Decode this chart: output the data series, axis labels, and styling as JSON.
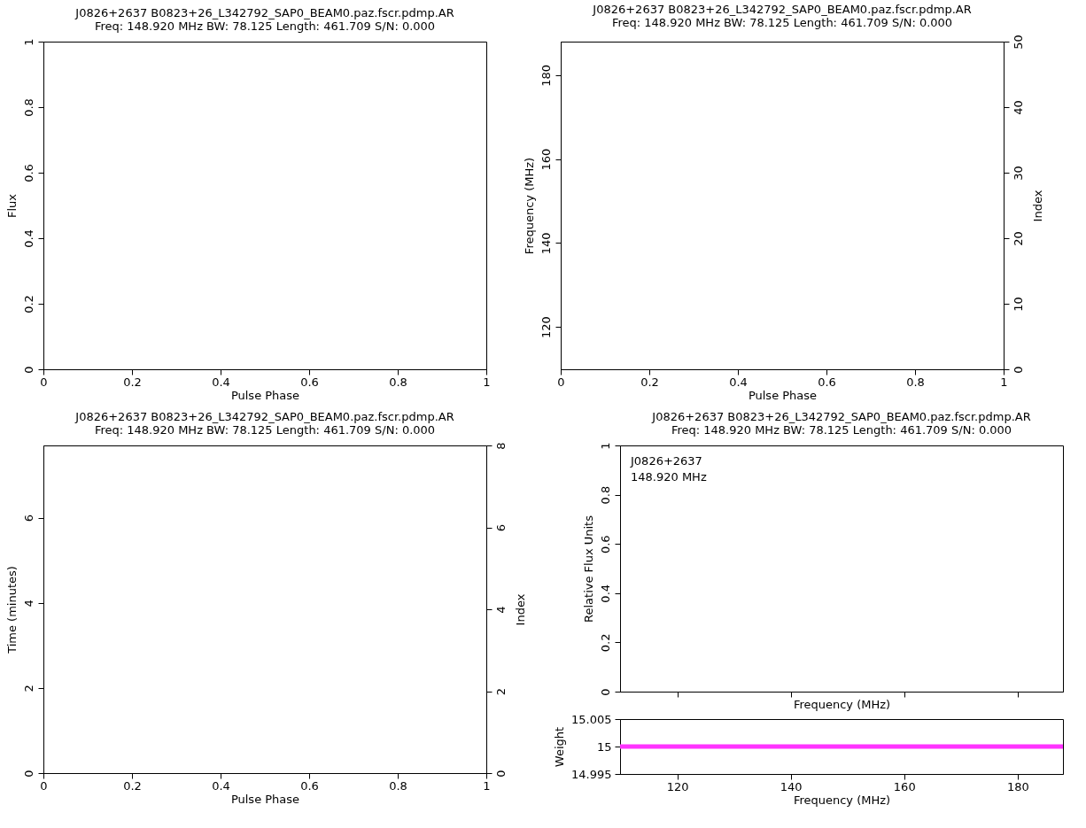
{
  "chart_data": [
    {
      "type": "line",
      "title": "J0826+2637 B0823+26_L342792_SAP0_BEAM0.paz.fscr.pdmp.AR",
      "subtitle": "Freq: 148.920 MHz BW: 78.125 Length: 461.709 S/N: 0.000",
      "xlabel": "Pulse Phase",
      "ylabel": "Flux",
      "xlim": [
        0,
        1
      ],
      "ylim": [
        0,
        1
      ],
      "xticks": [
        0,
        0.2,
        0.4,
        0.6,
        0.8,
        1
      ],
      "yticks": [
        0,
        0.2,
        0.4,
        0.6,
        0.8,
        1
      ]
    },
    {
      "type": "line",
      "title": "J0826+2637 B0823+26_L342792_SAP0_BEAM0.paz.fscr.pdmp.AR",
      "subtitle": "Freq: 148.920 MHz BW: 78.125 Length: 461.709 S/N: 0.000",
      "xlabel": "Pulse Phase",
      "ylabel": "Frequency (MHz)",
      "y2label": "Index",
      "xlim": [
        0,
        1
      ],
      "ylim": [
        109.9,
        188
      ],
      "y2lim": [
        0,
        50
      ],
      "xticks": [
        0,
        0.2,
        0.4,
        0.6,
        0.8,
        1
      ],
      "yticks": [
        120,
        140,
        160,
        180
      ],
      "y2ticks": [
        0,
        10,
        20,
        30,
        40,
        50
      ]
    },
    {
      "type": "line",
      "title": "J0826+2637 B0823+26_L342792_SAP0_BEAM0.paz.fscr.pdmp.AR",
      "subtitle": "Freq: 148.920 MHz BW: 78.125 Length: 461.709 S/N: 0.000",
      "xlabel": "Pulse Phase",
      "ylabel": "Time (minutes)",
      "y2label": "Index",
      "xlim": [
        0,
        1
      ],
      "ylim": [
        0,
        7.7
      ],
      "y2lim": [
        0,
        8
      ],
      "xticks": [
        0,
        0.2,
        0.4,
        0.6,
        0.8,
        1
      ],
      "yticks": [
        0,
        2,
        4,
        6
      ],
      "y2ticks": [
        0,
        2,
        4,
        6,
        8
      ]
    },
    {
      "type": "line",
      "title": "J0826+2637 B0823+26_L342792_SAP0_BEAM0.paz.fscr.pdmp.AR",
      "subtitle": "Freq: 148.920 MHz BW: 78.125 Length: 461.709 S/N: 0.000",
      "xlabel": "Frequency (MHz)",
      "ylabel": "Relative Flux Units",
      "xlim": [
        109.9,
        188
      ],
      "ylim": [
        0,
        1
      ],
      "xticks": [
        120,
        140,
        160,
        180
      ],
      "yticks": [
        0,
        0.2,
        0.4,
        0.6,
        0.8,
        1
      ],
      "tick_labels": "y",
      "annotations": [
        "J0826+2637",
        "148.920 MHz"
      ]
    },
    {
      "type": "line",
      "xlabel": "Frequency (MHz)",
      "ylabel": "Weight",
      "xlim": [
        109.9,
        188
      ],
      "ylim": [
        14.995,
        15.005
      ],
      "xticks": [
        120,
        140,
        160,
        180
      ],
      "yticks": [
        14.995,
        15,
        15.005
      ],
      "x": [
        109.9,
        188
      ],
      "values": [
        15,
        15
      ],
      "color": "#ff33ff"
    }
  ]
}
